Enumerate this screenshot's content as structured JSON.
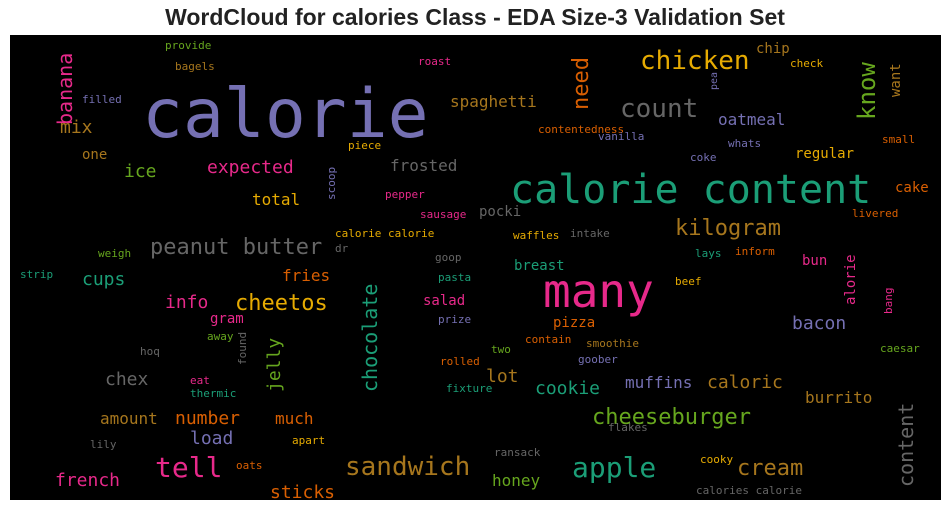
{
  "chart_data": {
    "type": "wordcloud",
    "title": "WordCloud for calories Class - EDA Size-3 Validation Set",
    "background": "#000000",
    "palette": [
      "#7570b3",
      "#1b9e77",
      "#e7298a",
      "#d95f02",
      "#e6ab02",
      "#66a61e",
      "#a6761d",
      "#666666"
    ],
    "words": [
      {
        "text": "calorie",
        "color": "#7570b3"
      },
      {
        "text": "calorie content",
        "color": "#1b9e77"
      },
      {
        "text": "many",
        "color": "#e7298a"
      },
      {
        "text": "chicken",
        "color": "#e6ab02"
      },
      {
        "text": "count",
        "color": "#666666"
      },
      {
        "text": "know",
        "color": "#66a61e"
      },
      {
        "text": "need",
        "color": "#d95f02"
      },
      {
        "text": "banana",
        "color": "#e7298a"
      },
      {
        "text": "mix",
        "color": "#a6761d"
      },
      {
        "text": "spaghetti",
        "color": "#a6761d"
      },
      {
        "text": "oatmeal",
        "color": "#7570b3"
      },
      {
        "text": "want",
        "color": "#a6761d"
      },
      {
        "text": "chip",
        "color": "#a6761d"
      },
      {
        "text": "check",
        "color": "#e6ab02"
      },
      {
        "text": "roast",
        "color": "#e7298a"
      },
      {
        "text": "provide",
        "color": "#66a61e"
      },
      {
        "text": "bagels",
        "color": "#a6761d"
      },
      {
        "text": "filled",
        "color": "#7570b3"
      },
      {
        "text": "pea",
        "color": "#7570b3"
      },
      {
        "text": "one",
        "color": "#a6761d"
      },
      {
        "text": "ice",
        "color": "#66a61e"
      },
      {
        "text": "expected",
        "color": "#e7298a"
      },
      {
        "text": "frosted",
        "color": "#666666"
      },
      {
        "text": "piece",
        "color": "#e6ab02"
      },
      {
        "text": "contentedness",
        "color": "#d95f02"
      },
      {
        "text": "vanilla",
        "color": "#7570b3"
      },
      {
        "text": "whats",
        "color": "#7570b3"
      },
      {
        "text": "coke",
        "color": "#7570b3"
      },
      {
        "text": "regular",
        "color": "#e6ab02"
      },
      {
        "text": "small",
        "color": "#d95f02"
      },
      {
        "text": "cake",
        "color": "#d95f02"
      },
      {
        "text": "livered",
        "color": "#d95f02"
      },
      {
        "text": "total",
        "color": "#e6ab02"
      },
      {
        "text": "scoop",
        "color": "#7570b3"
      },
      {
        "text": "pepper",
        "color": "#e7298a"
      },
      {
        "text": "sausage",
        "color": "#e7298a"
      },
      {
        "text": "pocki",
        "color": "#666666"
      },
      {
        "text": "kilogram",
        "color": "#a6761d"
      },
      {
        "text": "peanut butter",
        "color": "#666666"
      },
      {
        "text": "dr",
        "color": "#666666"
      },
      {
        "text": "calorie calorie",
        "color": "#e6ab02"
      },
      {
        "text": "waffles",
        "color": "#e6ab02"
      },
      {
        "text": "intake",
        "color": "#666666"
      },
      {
        "text": "goop",
        "color": "#666666"
      },
      {
        "text": "cups",
        "color": "#1b9e77"
      },
      {
        "text": "weigh",
        "color": "#66a61e"
      },
      {
        "text": "strip",
        "color": "#1b9e77"
      },
      {
        "text": "lays",
        "color": "#1b9e77"
      },
      {
        "text": "inform",
        "color": "#d95f02"
      },
      {
        "text": "bun",
        "color": "#e7298a"
      },
      {
        "text": "fries",
        "color": "#d95f02"
      },
      {
        "text": "breast",
        "color": "#1b9e77"
      },
      {
        "text": "pasta",
        "color": "#1b9e77"
      },
      {
        "text": "beef",
        "color": "#e6ab02"
      },
      {
        "text": "alorie",
        "color": "#e7298a"
      },
      {
        "text": "info",
        "color": "#e7298a"
      },
      {
        "text": "cheetos",
        "color": "#e6ab02"
      },
      {
        "text": "chocolate",
        "color": "#1b9e77"
      },
      {
        "text": "salad",
        "color": "#e7298a"
      },
      {
        "text": "prize",
        "color": "#7570b3"
      },
      {
        "text": "pizza",
        "color": "#d95f02"
      },
      {
        "text": "bacon",
        "color": "#7570b3"
      },
      {
        "text": "bang",
        "color": "#e7298a"
      },
      {
        "text": "gram",
        "color": "#e7298a"
      },
      {
        "text": "away",
        "color": "#66a61e"
      },
      {
        "text": "jelly",
        "color": "#66a61e"
      },
      {
        "text": "found",
        "color": "#666666"
      },
      {
        "text": "hoq",
        "color": "#666666"
      },
      {
        "text": "contain",
        "color": "#d95f02"
      },
      {
        "text": "smoothie",
        "color": "#a6761d"
      },
      {
        "text": "two",
        "color": "#66a61e"
      },
      {
        "text": "caesar",
        "color": "#66a61e"
      },
      {
        "text": "lot",
        "color": "#a6761d"
      },
      {
        "text": "rolled",
        "color": "#d95f02"
      },
      {
        "text": "goober",
        "color": "#7570b3"
      },
      {
        "text": "chex",
        "color": "#666666"
      },
      {
        "text": "eat",
        "color": "#e7298a"
      },
      {
        "text": "cookie",
        "color": "#1b9e77"
      },
      {
        "text": "muffins",
        "color": "#7570b3"
      },
      {
        "text": "caloric",
        "color": "#a6761d"
      },
      {
        "text": "fixture",
        "color": "#1b9e77"
      },
      {
        "text": "burrito",
        "color": "#a6761d"
      },
      {
        "text": "thermic",
        "color": "#1b9e77"
      },
      {
        "text": "amount",
        "color": "#a6761d"
      },
      {
        "text": "number",
        "color": "#d95f02"
      },
      {
        "text": "much",
        "color": "#d95f02"
      },
      {
        "text": "cheeseburger",
        "color": "#66a61e"
      },
      {
        "text": "flakes",
        "color": "#666666"
      },
      {
        "text": "content",
        "color": "#666666"
      },
      {
        "text": "load",
        "color": "#7570b3"
      },
      {
        "text": "lily",
        "color": "#666666"
      },
      {
        "text": "apart",
        "color": "#e6ab02"
      },
      {
        "text": "ransack",
        "color": "#666666"
      },
      {
        "text": "oats",
        "color": "#d95f02"
      },
      {
        "text": "tell",
        "color": "#e7298a"
      },
      {
        "text": "sandwich",
        "color": "#a6761d"
      },
      {
        "text": "apple",
        "color": "#1b9e77"
      },
      {
        "text": "cream",
        "color": "#a6761d"
      },
      {
        "text": "cooky",
        "color": "#e6ab02"
      },
      {
        "text": "honey",
        "color": "#66a61e"
      },
      {
        "text": "french",
        "color": "#e7298a"
      },
      {
        "text": "sticks",
        "color": "#d95f02"
      },
      {
        "text": "calories calorie",
        "color": "#666666"
      }
    ]
  }
}
